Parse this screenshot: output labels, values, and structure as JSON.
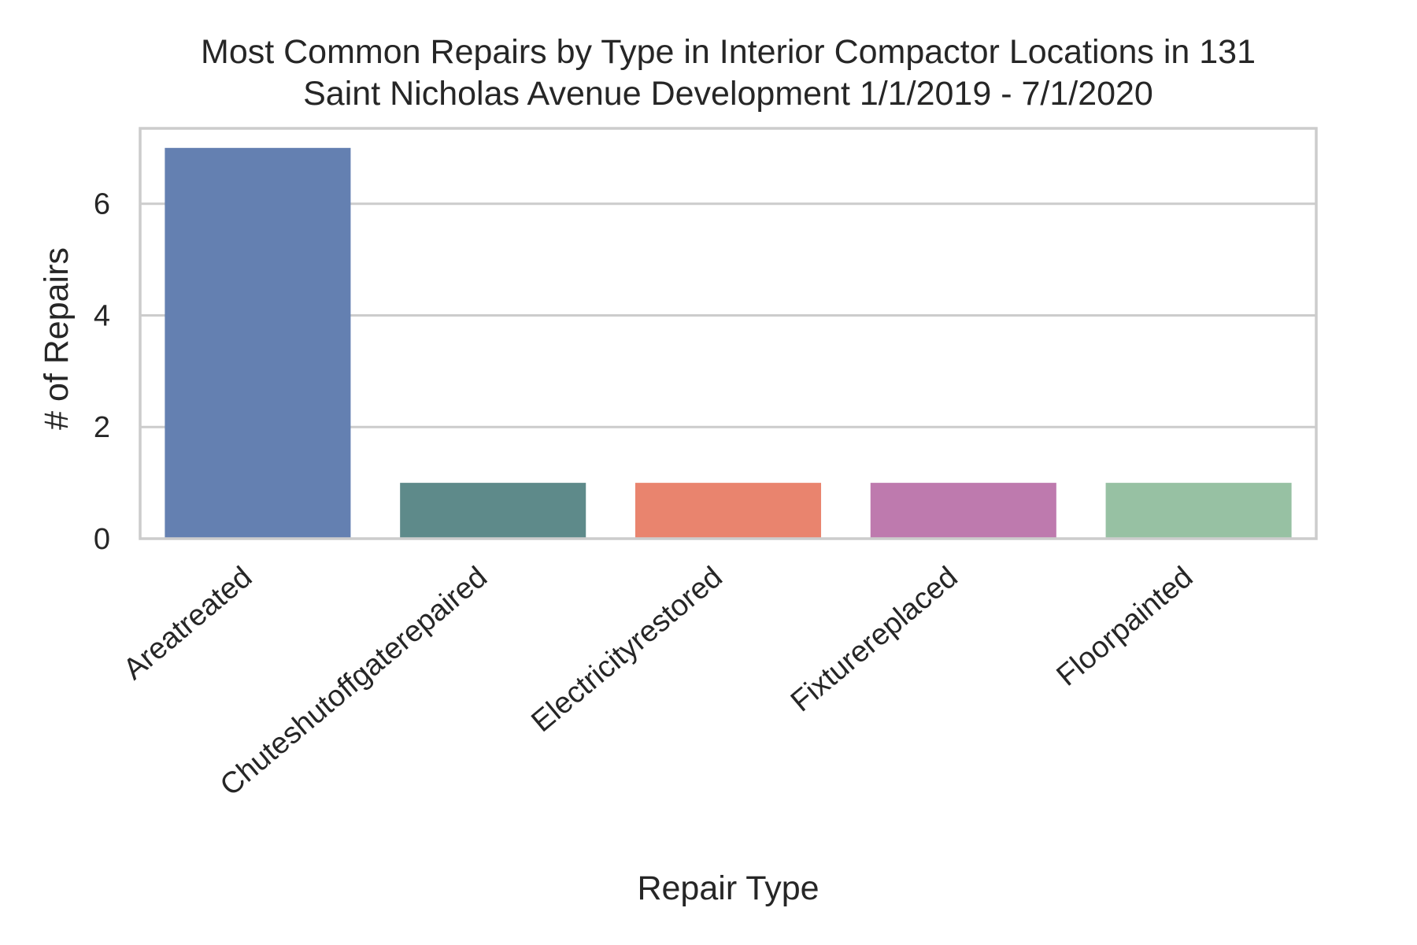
{
  "chart_data": {
    "type": "bar",
    "title": "Most Common Repairs by Type in Interior Compactor Locations in 131 Saint Nicholas Avenue Development 1/1/2019 - 7/1/2020",
    "title_lines": [
      "Most Common Repairs by Type in Interior Compactor Locations in 131",
      "Saint Nicholas Avenue Development 1/1/2019 - 7/1/2020"
    ],
    "xlabel": "Repair Type",
    "ylabel": "# of Repairs",
    "categories": [
      "Areatreated",
      "Chuteshutoffgaterepaired",
      "Electricityrestored",
      "Fixturereplaced",
      "Floorpainted"
    ],
    "values": [
      7,
      1,
      1,
      1,
      1
    ],
    "colors": [
      "#6480b1",
      "#5e8a8a",
      "#e9846e",
      "#be7aae",
      "#97c1a3"
    ],
    "ylim": [
      0,
      7.35
    ],
    "yticks": [
      0,
      2,
      4,
      6
    ],
    "grid": true,
    "grid_axis": "y",
    "legend": "none"
  }
}
